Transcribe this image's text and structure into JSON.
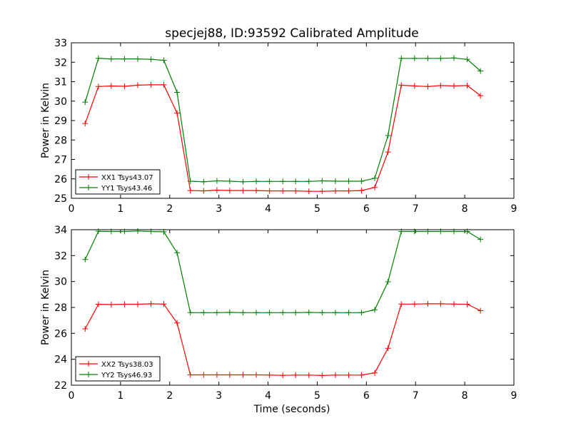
{
  "figure": {
    "title": "specjej88, ID:93592 Calibrated Amplitude",
    "xlabel": "Time (seconds)"
  },
  "chart_data": [
    {
      "type": "line",
      "title": "specjej88, ID:93592 Calibrated Amplitude",
      "xlabel": "",
      "ylabel": "Power in Kelvin",
      "xlim": [
        0,
        9
      ],
      "ylim": [
        25,
        33
      ],
      "xticks": [
        "0",
        "1",
        "2",
        "3",
        "4",
        "5",
        "6",
        "7",
        "8",
        "9"
      ],
      "yticks": [
        "25",
        "26",
        "27",
        "28",
        "29",
        "30",
        "31",
        "32",
        "33"
      ],
      "grid": false,
      "legend_position": "lower-left",
      "x": [
        0.28,
        0.55,
        0.81,
        1.08,
        1.35,
        1.62,
        1.88,
        2.15,
        2.42,
        2.69,
        2.96,
        3.22,
        3.49,
        3.76,
        4.03,
        4.3,
        4.56,
        4.83,
        5.1,
        5.37,
        5.64,
        5.9,
        6.17,
        6.44,
        6.71,
        6.98,
        7.25,
        7.51,
        7.78,
        8.05,
        8.32
      ],
      "series": [
        {
          "name": "XX1 Tsys43.07",
          "color": "#ff0000",
          "values": [
            28.85,
            30.75,
            30.78,
            30.76,
            30.82,
            30.84,
            30.84,
            29.38,
            25.4,
            25.38,
            25.42,
            25.4,
            25.4,
            25.4,
            25.38,
            25.38,
            25.38,
            25.36,
            25.36,
            25.38,
            25.38,
            25.4,
            25.56,
            27.38,
            30.82,
            30.78,
            30.75,
            30.8,
            30.78,
            30.8,
            30.28
          ]
        },
        {
          "name": "YY1 Tsys43.46",
          "color": "#008000",
          "values": [
            29.95,
            32.2,
            32.17,
            32.17,
            32.17,
            32.15,
            32.1,
            30.45,
            25.88,
            25.85,
            25.9,
            25.88,
            25.85,
            25.87,
            25.87,
            25.87,
            25.87,
            25.87,
            25.9,
            25.88,
            25.88,
            25.88,
            26.03,
            28.23,
            32.2,
            32.2,
            32.2,
            32.2,
            32.22,
            32.15,
            31.55
          ]
        }
      ]
    },
    {
      "type": "line",
      "title": "",
      "xlabel": "Time (seconds)",
      "ylabel": "Power in Kelvin",
      "xlim": [
        0,
        9
      ],
      "ylim": [
        22,
        34
      ],
      "xticks": [
        "0",
        "1",
        "2",
        "3",
        "4",
        "5",
        "6",
        "7",
        "8",
        "9"
      ],
      "yticks": [
        "22",
        "24",
        "26",
        "28",
        "30",
        "32",
        "34"
      ],
      "grid": false,
      "legend_position": "lower-left",
      "x": [
        0.28,
        0.55,
        0.81,
        1.08,
        1.35,
        1.62,
        1.88,
        2.15,
        2.42,
        2.69,
        2.96,
        3.22,
        3.49,
        3.76,
        4.03,
        4.3,
        4.56,
        4.83,
        5.1,
        5.37,
        5.64,
        5.9,
        6.17,
        6.44,
        6.71,
        6.98,
        7.25,
        7.51,
        7.78,
        8.05,
        8.32
      ],
      "series": [
        {
          "name": "XX2 Tsys38.03",
          "color": "#ff0000",
          "values": [
            26.35,
            28.25,
            28.22,
            28.25,
            28.25,
            28.28,
            28.26,
            26.8,
            22.8,
            22.8,
            22.8,
            22.8,
            22.8,
            22.8,
            22.78,
            22.76,
            22.78,
            22.78,
            22.75,
            22.78,
            22.78,
            22.78,
            22.95,
            24.85,
            28.26,
            28.26,
            28.28,
            28.28,
            28.26,
            28.25,
            27.75
          ]
        },
        {
          "name": "YY2 Tsys46.93",
          "color": "#008000",
          "values": [
            31.7,
            33.88,
            33.86,
            33.86,
            33.9,
            33.86,
            33.84,
            32.22,
            27.6,
            27.6,
            27.6,
            27.62,
            27.6,
            27.6,
            27.6,
            27.6,
            27.6,
            27.62,
            27.6,
            27.6,
            27.6,
            27.6,
            27.82,
            29.98,
            33.86,
            33.86,
            33.86,
            33.86,
            33.86,
            33.86,
            33.25
          ]
        }
      ]
    }
  ]
}
